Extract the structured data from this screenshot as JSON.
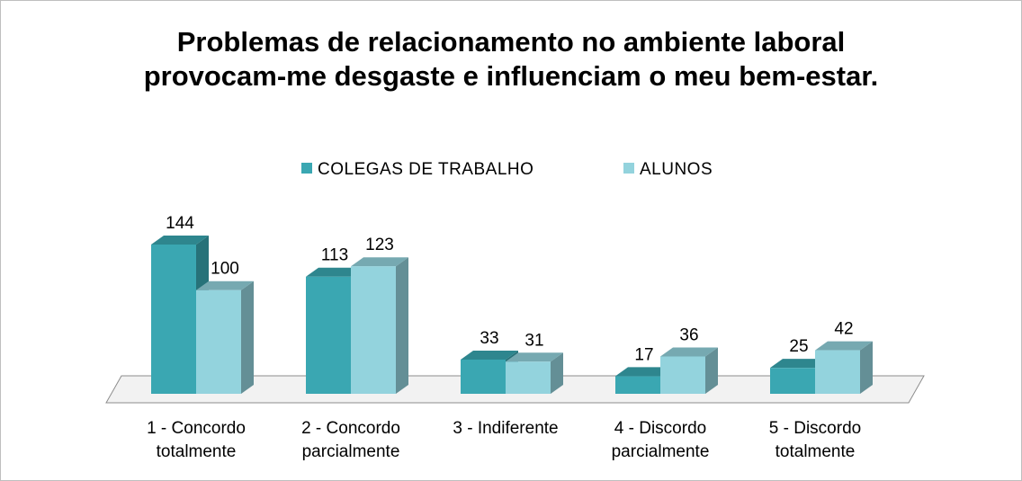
{
  "chart_data": {
    "type": "bar3d",
    "title": "Problemas de relacionamento no ambiente laboral provocam-me desgaste e influenciam o meu bem-estar.",
    "categories": [
      "1 - Concordo totalmente",
      "2 - Concordo parcialmente",
      "3 - Indiferente",
      "4 - Discordo parcialmente",
      "5 - Discordo totalmente"
    ],
    "series": [
      {
        "name": "COLEGAS DE TRABALHO",
        "color": "#3aa7b2",
        "values": [
          144,
          113,
          33,
          17,
          25
        ]
      },
      {
        "name": "ALUNOS",
        "color": "#93d3dd",
        "values": [
          100,
          123,
          31,
          36,
          42
        ]
      }
    ]
  }
}
